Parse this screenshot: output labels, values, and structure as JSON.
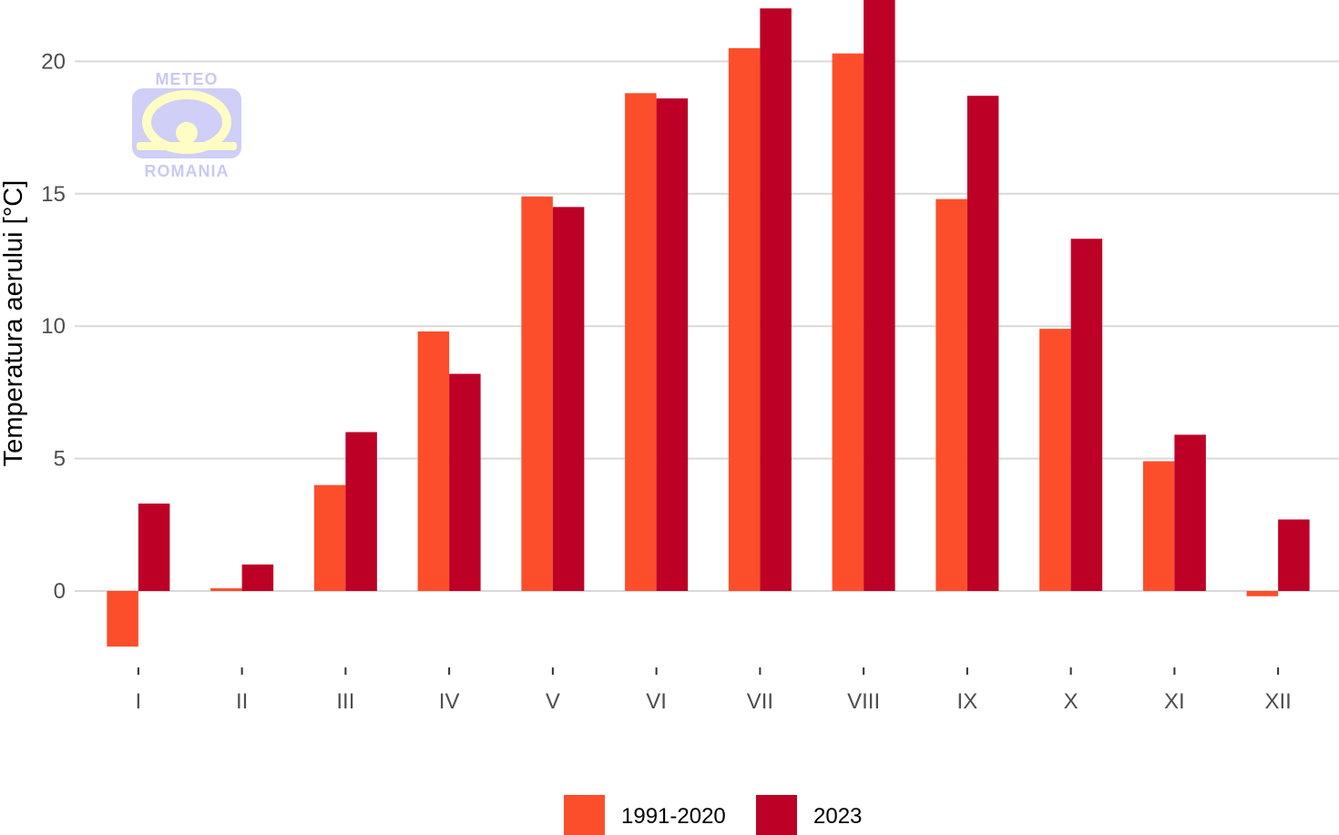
{
  "chart_data": {
    "type": "bar",
    "title": "",
    "xlabel": "",
    "ylabel": "Temperatura aerului [°C]",
    "categories": [
      "I",
      "II",
      "III",
      "IV",
      "V",
      "VI",
      "VII",
      "VIII",
      "IX",
      "X",
      "XI",
      "XII"
    ],
    "series": [
      {
        "name": "1991-2020",
        "color": "#fc4e2a",
        "values": [
          -2.1,
          0.1,
          4.0,
          9.8,
          14.9,
          18.8,
          20.5,
          20.3,
          14.8,
          9.9,
          4.9,
          -0.2
        ]
      },
      {
        "name": "2023",
        "color": "#bd0026",
        "values": [
          3.3,
          1.0,
          6.0,
          8.2,
          14.5,
          18.6,
          22.0,
          22.4,
          18.7,
          13.3,
          5.9,
          2.7
        ]
      }
    ],
    "ylim": [
      -2.9,
      22.5
    ],
    "yticks": [
      0,
      5,
      10,
      15,
      20
    ],
    "grid": true,
    "legend_position": "bottom"
  },
  "logo": {
    "top_text": "METEO",
    "bottom_text": "ROMANIA"
  }
}
